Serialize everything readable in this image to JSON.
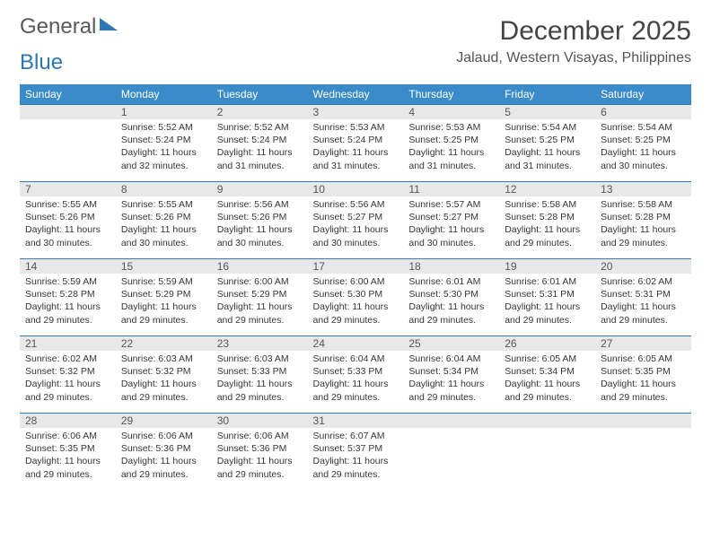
{
  "logo": {
    "part1": "General",
    "part2": "Blue"
  },
  "header": {
    "title": "December 2025",
    "location": "Jalaud, Western Visayas, Philippines"
  },
  "columns": [
    "Sunday",
    "Monday",
    "Tuesday",
    "Wednesday",
    "Thursday",
    "Friday",
    "Saturday"
  ],
  "colors": {
    "header_bg": "#3a8bc9",
    "header_fg": "#ffffff",
    "daynum_bg": "#e8e8e8",
    "cell_border": "#3a78a8",
    "brand_blue": "#2e76b6"
  },
  "weeks": [
    [
      null,
      {
        "n": "1",
        "sr": "Sunrise: 5:52 AM",
        "ss": "Sunset: 5:24 PM",
        "d1": "Daylight: 11 hours",
        "d2": "and 32 minutes."
      },
      {
        "n": "2",
        "sr": "Sunrise: 5:52 AM",
        "ss": "Sunset: 5:24 PM",
        "d1": "Daylight: 11 hours",
        "d2": "and 31 minutes."
      },
      {
        "n": "3",
        "sr": "Sunrise: 5:53 AM",
        "ss": "Sunset: 5:24 PM",
        "d1": "Daylight: 11 hours",
        "d2": "and 31 minutes."
      },
      {
        "n": "4",
        "sr": "Sunrise: 5:53 AM",
        "ss": "Sunset: 5:25 PM",
        "d1": "Daylight: 11 hours",
        "d2": "and 31 minutes."
      },
      {
        "n": "5",
        "sr": "Sunrise: 5:54 AM",
        "ss": "Sunset: 5:25 PM",
        "d1": "Daylight: 11 hours",
        "d2": "and 31 minutes."
      },
      {
        "n": "6",
        "sr": "Sunrise: 5:54 AM",
        "ss": "Sunset: 5:25 PM",
        "d1": "Daylight: 11 hours",
        "d2": "and 30 minutes."
      }
    ],
    [
      {
        "n": "7",
        "sr": "Sunrise: 5:55 AM",
        "ss": "Sunset: 5:26 PM",
        "d1": "Daylight: 11 hours",
        "d2": "and 30 minutes."
      },
      {
        "n": "8",
        "sr": "Sunrise: 5:55 AM",
        "ss": "Sunset: 5:26 PM",
        "d1": "Daylight: 11 hours",
        "d2": "and 30 minutes."
      },
      {
        "n": "9",
        "sr": "Sunrise: 5:56 AM",
        "ss": "Sunset: 5:26 PM",
        "d1": "Daylight: 11 hours",
        "d2": "and 30 minutes."
      },
      {
        "n": "10",
        "sr": "Sunrise: 5:56 AM",
        "ss": "Sunset: 5:27 PM",
        "d1": "Daylight: 11 hours",
        "d2": "and 30 minutes."
      },
      {
        "n": "11",
        "sr": "Sunrise: 5:57 AM",
        "ss": "Sunset: 5:27 PM",
        "d1": "Daylight: 11 hours",
        "d2": "and 30 minutes."
      },
      {
        "n": "12",
        "sr": "Sunrise: 5:58 AM",
        "ss": "Sunset: 5:28 PM",
        "d1": "Daylight: 11 hours",
        "d2": "and 29 minutes."
      },
      {
        "n": "13",
        "sr": "Sunrise: 5:58 AM",
        "ss": "Sunset: 5:28 PM",
        "d1": "Daylight: 11 hours",
        "d2": "and 29 minutes."
      }
    ],
    [
      {
        "n": "14",
        "sr": "Sunrise: 5:59 AM",
        "ss": "Sunset: 5:28 PM",
        "d1": "Daylight: 11 hours",
        "d2": "and 29 minutes."
      },
      {
        "n": "15",
        "sr": "Sunrise: 5:59 AM",
        "ss": "Sunset: 5:29 PM",
        "d1": "Daylight: 11 hours",
        "d2": "and 29 minutes."
      },
      {
        "n": "16",
        "sr": "Sunrise: 6:00 AM",
        "ss": "Sunset: 5:29 PM",
        "d1": "Daylight: 11 hours",
        "d2": "and 29 minutes."
      },
      {
        "n": "17",
        "sr": "Sunrise: 6:00 AM",
        "ss": "Sunset: 5:30 PM",
        "d1": "Daylight: 11 hours",
        "d2": "and 29 minutes."
      },
      {
        "n": "18",
        "sr": "Sunrise: 6:01 AM",
        "ss": "Sunset: 5:30 PM",
        "d1": "Daylight: 11 hours",
        "d2": "and 29 minutes."
      },
      {
        "n": "19",
        "sr": "Sunrise: 6:01 AM",
        "ss": "Sunset: 5:31 PM",
        "d1": "Daylight: 11 hours",
        "d2": "and 29 minutes."
      },
      {
        "n": "20",
        "sr": "Sunrise: 6:02 AM",
        "ss": "Sunset: 5:31 PM",
        "d1": "Daylight: 11 hours",
        "d2": "and 29 minutes."
      }
    ],
    [
      {
        "n": "21",
        "sr": "Sunrise: 6:02 AM",
        "ss": "Sunset: 5:32 PM",
        "d1": "Daylight: 11 hours",
        "d2": "and 29 minutes."
      },
      {
        "n": "22",
        "sr": "Sunrise: 6:03 AM",
        "ss": "Sunset: 5:32 PM",
        "d1": "Daylight: 11 hours",
        "d2": "and 29 minutes."
      },
      {
        "n": "23",
        "sr": "Sunrise: 6:03 AM",
        "ss": "Sunset: 5:33 PM",
        "d1": "Daylight: 11 hours",
        "d2": "and 29 minutes."
      },
      {
        "n": "24",
        "sr": "Sunrise: 6:04 AM",
        "ss": "Sunset: 5:33 PM",
        "d1": "Daylight: 11 hours",
        "d2": "and 29 minutes."
      },
      {
        "n": "25",
        "sr": "Sunrise: 6:04 AM",
        "ss": "Sunset: 5:34 PM",
        "d1": "Daylight: 11 hours",
        "d2": "and 29 minutes."
      },
      {
        "n": "26",
        "sr": "Sunrise: 6:05 AM",
        "ss": "Sunset: 5:34 PM",
        "d1": "Daylight: 11 hours",
        "d2": "and 29 minutes."
      },
      {
        "n": "27",
        "sr": "Sunrise: 6:05 AM",
        "ss": "Sunset: 5:35 PM",
        "d1": "Daylight: 11 hours",
        "d2": "and 29 minutes."
      }
    ],
    [
      {
        "n": "28",
        "sr": "Sunrise: 6:06 AM",
        "ss": "Sunset: 5:35 PM",
        "d1": "Daylight: 11 hours",
        "d2": "and 29 minutes."
      },
      {
        "n": "29",
        "sr": "Sunrise: 6:06 AM",
        "ss": "Sunset: 5:36 PM",
        "d1": "Daylight: 11 hours",
        "d2": "and 29 minutes."
      },
      {
        "n": "30",
        "sr": "Sunrise: 6:06 AM",
        "ss": "Sunset: 5:36 PM",
        "d1": "Daylight: 11 hours",
        "d2": "and 29 minutes."
      },
      {
        "n": "31",
        "sr": "Sunrise: 6:07 AM",
        "ss": "Sunset: 5:37 PM",
        "d1": "Daylight: 11 hours",
        "d2": "and 29 minutes."
      },
      null,
      null,
      null
    ]
  ]
}
